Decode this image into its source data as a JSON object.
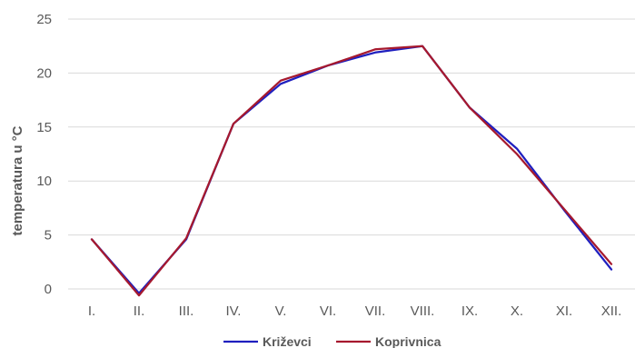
{
  "chart_data": {
    "type": "line",
    "categories": [
      "I.",
      "II.",
      "III.",
      "IV.",
      "V.",
      "VI.",
      "VII.",
      "VIII.",
      "IX.",
      "X.",
      "XI.",
      "XII."
    ],
    "series": [
      {
        "name": "Križevci",
        "color": "#1f1fbf",
        "values": [
          4.6,
          -0.4,
          4.6,
          15.3,
          19.0,
          20.7,
          21.9,
          22.5,
          16.8,
          13.0,
          7.3,
          1.8
        ]
      },
      {
        "name": "Koprivnica",
        "color": "#a6192e",
        "values": [
          4.6,
          -0.6,
          4.7,
          15.3,
          19.3,
          20.7,
          22.2,
          22.5,
          16.8,
          12.5,
          7.4,
          2.3
        ]
      }
    ],
    "title": "",
    "xlabel": "",
    "ylabel": "temperatura u °C",
    "ylim": [
      0,
      25
    ],
    "yticks": [
      0,
      5,
      10,
      15,
      20,
      25
    ],
    "grid": true,
    "legend_position": "bottom"
  }
}
